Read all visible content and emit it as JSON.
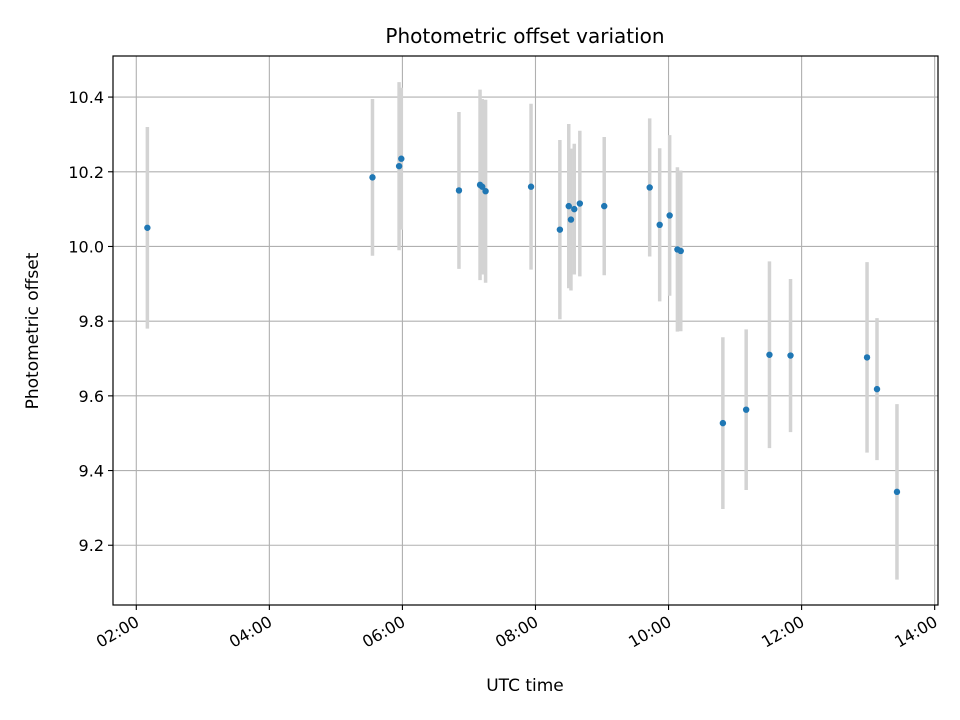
{
  "chart_data": {
    "type": "scatter",
    "title": "Photometric offset variation",
    "xlabel": "UTC time",
    "ylabel": "Photometric offset",
    "x_tick_labels": [
      "02:00",
      "04:00",
      "06:00",
      "08:00",
      "10:00",
      "12:00",
      "14:00"
    ],
    "y_tick_labels": [
      "9.2",
      "9.4",
      "9.6",
      "9.8",
      "10.0",
      "10.2",
      "10.4"
    ],
    "x_ticks_hours": [
      2,
      4,
      6,
      8,
      10,
      12,
      14
    ],
    "y_ticks": [
      9.2,
      9.4,
      9.6,
      9.8,
      10.0,
      10.2,
      10.4
    ],
    "xlim_hours": [
      1.65,
      14.05
    ],
    "ylim": [
      9.04,
      10.51
    ],
    "grid": true,
    "colors": {
      "point": "#1f77b4",
      "errorbar": "#d3d3d3",
      "grid": "#b0b0b0",
      "axes": "#000000"
    },
    "series": [
      {
        "points": [
          {
            "x": "02:10",
            "y": 10.05,
            "yerr": 0.27
          },
          {
            "x": "05:33",
            "y": 10.185,
            "yerr": 0.21
          },
          {
            "x": "05:57",
            "y": 10.215,
            "yerr": 0.225
          },
          {
            "x": "05:59",
            "y": 10.235,
            "yerr": 0.19
          },
          {
            "x": "06:51",
            "y": 10.15,
            "yerr": 0.21
          },
          {
            "x": "07:10",
            "y": 10.165,
            "yerr": 0.255
          },
          {
            "x": "07:12",
            "y": 10.16,
            "yerr": 0.235
          },
          {
            "x": "07:15",
            "y": 10.148,
            "yerr": 0.245
          },
          {
            "x": "07:56",
            "y": 10.16,
            "yerr": 0.222
          },
          {
            "x": "08:22",
            "y": 10.045,
            "yerr": 0.24
          },
          {
            "x": "08:30",
            "y": 10.108,
            "yerr": 0.22
          },
          {
            "x": "08:32",
            "y": 10.072,
            "yerr": 0.19
          },
          {
            "x": "08:35",
            "y": 10.1,
            "yerr": 0.175
          },
          {
            "x": "08:40",
            "y": 10.115,
            "yerr": 0.195
          },
          {
            "x": "09:02",
            "y": 10.108,
            "yerr": 0.185
          },
          {
            "x": "09:43",
            "y": 10.158,
            "yerr": 0.185
          },
          {
            "x": "09:52",
            "y": 10.058,
            "yerr": 0.205
          },
          {
            "x": "10:01",
            "y": 10.083,
            "yerr": 0.215
          },
          {
            "x": "10:08",
            "y": 9.992,
            "yerr": 0.22
          },
          {
            "x": "10:11",
            "y": 9.988,
            "yerr": 0.215
          },
          {
            "x": "10:49",
            "y": 9.527,
            "yerr": 0.23
          },
          {
            "x": "11:10",
            "y": 9.563,
            "yerr": 0.215
          },
          {
            "x": "11:31",
            "y": 9.71,
            "yerr": 0.25
          },
          {
            "x": "11:50",
            "y": 9.708,
            "yerr": 0.205
          },
          {
            "x": "12:59",
            "y": 9.703,
            "yerr": 0.255
          },
          {
            "x": "13:08",
            "y": 9.618,
            "yerr": 0.19
          },
          {
            "x": "13:26",
            "y": 9.343,
            "yerr": 0.235
          }
        ]
      }
    ]
  }
}
